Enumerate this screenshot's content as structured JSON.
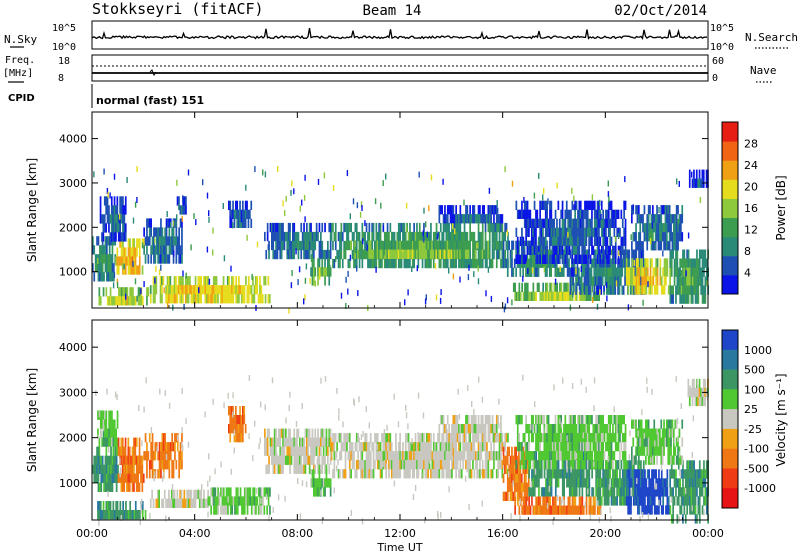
{
  "header": {
    "station": "Stokkseyri (fitACF)",
    "beam": "Beam 14",
    "date": "02/Oct/2014"
  },
  "status_panels": {
    "nsky_label": "N.Sky",
    "nsky_ticks": [
      "10^5",
      "10^0"
    ],
    "nsearch_label": "N.Search",
    "nsearch_ticks": [
      "10^5",
      "10^0"
    ],
    "freq_label": "Freq.",
    "freq_unit": "[MHz]",
    "freq_ticks": [
      "18",
      "8"
    ],
    "nave_label": "Nave",
    "nave_ticks": [
      "60",
      "0"
    ],
    "cpid_label": "CPID",
    "cpid_value": "normal (fast) 151"
  },
  "chart_data": [
    {
      "type": "heatmap",
      "title": "",
      "xlabel": "Time UT",
      "ylabel": "Slant Range [km]",
      "x_ticks": [
        "00:00",
        "04:00",
        "08:00",
        "12:00",
        "16:00",
        "20:00",
        "00:00"
      ],
      "x_range_hours": [
        0,
        24
      ],
      "y_ticks": [
        1000,
        2000,
        3000,
        4000
      ],
      "ylim": [
        180,
        4600
      ],
      "colorbar": {
        "label": "Power [dB]",
        "ticks": [
          4,
          8,
          12,
          16,
          20,
          24,
          28
        ],
        "range": [
          0,
          32
        ],
        "colors": [
          "#0a14e6",
          "#1e50b4",
          "#2a8a78",
          "#3c9c50",
          "#8ec83c",
          "#e6dc1e",
          "#f0a014",
          "#f06414",
          "#e61e14"
        ]
      },
      "regions": [
        {
          "t0": 0.0,
          "t1": 0.9,
          "r0": 900,
          "r1": 1800,
          "value": 12
        },
        {
          "t0": 0.9,
          "t1": 2.0,
          "r0": 950,
          "r1": 1750,
          "value": 24
        },
        {
          "t0": 2.0,
          "t1": 3.5,
          "r0": 1300,
          "r1": 2200,
          "value": 10
        },
        {
          "t0": 0.3,
          "t1": 1.3,
          "r0": 1800,
          "r1": 2700,
          "value": 8
        },
        {
          "t0": 3.3,
          "t1": 3.7,
          "r0": 2300,
          "r1": 2700,
          "value": 8
        },
        {
          "t0": 0.2,
          "t1": 2.2,
          "r0": 300,
          "r1": 650,
          "value": 20
        },
        {
          "t0": 2.2,
          "t1": 6.9,
          "r0": 380,
          "r1": 900,
          "value": 22
        },
        {
          "t0": 5.3,
          "t1": 6.2,
          "r0": 2000,
          "r1": 2600,
          "value": 8
        },
        {
          "t0": 6.7,
          "t1": 9.3,
          "r0": 1400,
          "r1": 2100,
          "value": 10
        },
        {
          "t0": 8.5,
          "t1": 9.3,
          "r0": 850,
          "r1": 1300,
          "value": 16
        },
        {
          "t0": 9.3,
          "t1": 16.2,
          "r0": 1200,
          "r1": 2100,
          "value": 14
        },
        {
          "t0": 10.0,
          "t1": 15.5,
          "r0": 1400,
          "r1": 1700,
          "value": 18
        },
        {
          "t0": 13.5,
          "t1": 16.0,
          "r0": 2100,
          "r1": 2500,
          "value": 8
        },
        {
          "t0": 16.0,
          "t1": 18.5,
          "r0": 1000,
          "r1": 1700,
          "value": 12
        },
        {
          "t0": 16.4,
          "t1": 19.8,
          "r0": 380,
          "r1": 750,
          "value": 18
        },
        {
          "t0": 18.5,
          "t1": 21.5,
          "r0": 600,
          "r1": 1500,
          "value": 10
        },
        {
          "t0": 20.8,
          "t1": 22.5,
          "r0": 500,
          "r1": 1300,
          "value": 22
        },
        {
          "t0": 22.5,
          "t1": 24.0,
          "r0": 300,
          "r1": 1500,
          "value": 14
        },
        {
          "t0": 16.5,
          "t1": 20.8,
          "r0": 1300,
          "r1": 2600,
          "value": 8
        },
        {
          "t0": 21.0,
          "t1": 23.0,
          "r0": 1600,
          "r1": 2500,
          "value": 10
        },
        {
          "t0": 23.2,
          "t1": 24.0,
          "r0": 2900,
          "r1": 3300,
          "value": 6
        }
      ]
    },
    {
      "type": "heatmap",
      "title": "",
      "xlabel": "Time UT",
      "ylabel": "Slant Range [km]",
      "x_ticks": [
        "00:00",
        "04:00",
        "08:00",
        "12:00",
        "16:00",
        "20:00",
        "00:00"
      ],
      "x_range_hours": [
        0,
        24
      ],
      "y_ticks": [
        1000,
        2000,
        3000,
        4000
      ],
      "ylim": [
        180,
        4600
      ],
      "colorbar": {
        "label": "Velocity [m s⁻¹]",
        "ticks": [
          "1000",
          "500",
          "100",
          "25",
          "-25",
          "-100",
          "-500",
          "-1000"
        ],
        "colors": [
          "#1e46c8",
          "#2878a0",
          "#3c9664",
          "#50c832",
          "#c8c8c0",
          "#f0a014",
          "#f07814",
          "#f03c14",
          "#e61414"
        ]
      },
      "regions": [
        {
          "t0": 0.2,
          "t1": 1.0,
          "r0": 1800,
          "r1": 2600,
          "value": 100
        },
        {
          "t0": 0.0,
          "t1": 1.0,
          "r0": 900,
          "r1": 1800,
          "value": 500
        },
        {
          "t0": 1.0,
          "t1": 2.0,
          "r0": 1000,
          "r1": 2000,
          "value": -500
        },
        {
          "t0": 2.0,
          "t1": 3.5,
          "r0": 1300,
          "r1": 2100,
          "value": -100
        },
        {
          "t0": 0.2,
          "t1": 2.2,
          "r0": 300,
          "r1": 600,
          "value": 500
        },
        {
          "t0": 2.2,
          "t1": 4.5,
          "r0": 500,
          "r1": 850,
          "value": 0
        },
        {
          "t0": 4.5,
          "t1": 6.9,
          "r0": 450,
          "r1": 900,
          "value": 100
        },
        {
          "t0": 5.3,
          "t1": 6.0,
          "r0": 2000,
          "r1": 2700,
          "value": -100
        },
        {
          "t0": 6.7,
          "t1": 9.3,
          "r0": 1400,
          "r1": 2200,
          "value": 0
        },
        {
          "t0": 8.5,
          "t1": 9.3,
          "r0": 850,
          "r1": 1300,
          "value": 100
        },
        {
          "t0": 9.3,
          "t1": 16.2,
          "r0": 1200,
          "r1": 2100,
          "value": 0
        },
        {
          "t0": 13.5,
          "t1": 16.0,
          "r0": 2100,
          "r1": 2500,
          "value": 0
        },
        {
          "t0": 16.0,
          "t1": 17.0,
          "r0": 700,
          "r1": 1800,
          "value": -500
        },
        {
          "t0": 16.4,
          "t1": 19.8,
          "r0": 380,
          "r1": 700,
          "value": -500
        },
        {
          "t0": 17.0,
          "t1": 19.5,
          "r0": 900,
          "r1": 1700,
          "value": 500
        },
        {
          "t0": 19.5,
          "t1": 21.5,
          "r0": 600,
          "r1": 1500,
          "value": 500
        },
        {
          "t0": 20.8,
          "t1": 22.5,
          "r0": 500,
          "r1": 1300,
          "value": 1000
        },
        {
          "t0": 22.5,
          "t1": 24.0,
          "r0": 300,
          "r1": 1500,
          "value": 500
        },
        {
          "t0": 16.5,
          "t1": 20.8,
          "r0": 1400,
          "r1": 2500,
          "value": 100
        },
        {
          "t0": 21.0,
          "t1": 23.0,
          "r0": 1600,
          "r1": 2400,
          "value": 100
        },
        {
          "t0": 23.2,
          "t1": 24.0,
          "r0": 2900,
          "r1": 3300,
          "value": 0
        }
      ]
    }
  ]
}
